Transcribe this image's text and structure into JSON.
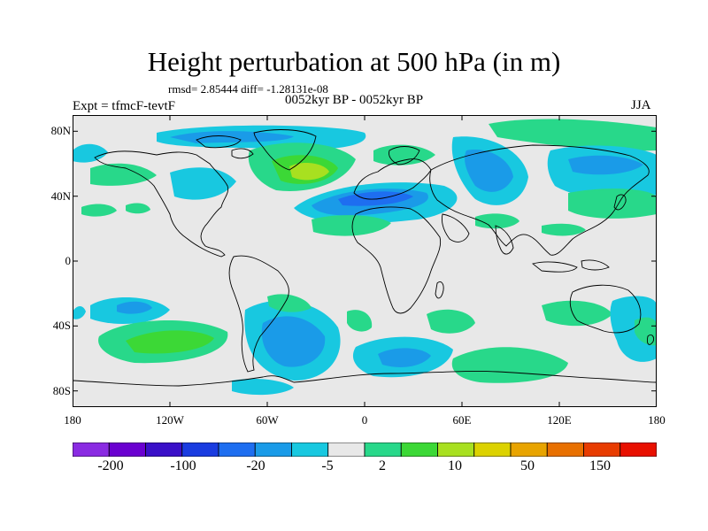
{
  "title": "Height perturbation at 500 hPa (in m)",
  "stats": "rmsd= 2.85444 diff= -1.28131e-08",
  "experiment": "Expt = tfmcF-tevtF",
  "period": "0052kyr BP - 0052kyr BP",
  "season": "JJA",
  "map": {
    "projection": "cylindrical equidistant",
    "lat_range": [
      -90,
      90
    ],
    "lon_range": [
      -180,
      180
    ],
    "lat_ticks": [
      "80N",
      "40N",
      "0",
      "40S",
      "80S"
    ],
    "lon_ticks": [
      "180",
      "120W",
      "60W",
      "0",
      "60E",
      "120E",
      "180"
    ],
    "background_color": "#e8e8e8",
    "coastline_color": "#000000"
  },
  "colorbar": {
    "colors": [
      "#8a2be2",
      "#6a00d0",
      "#3a10c8",
      "#1a3ce0",
      "#1e6ef0",
      "#1a9be8",
      "#18c8e0",
      "#e8e8e8",
      "#28d88a",
      "#3cd836",
      "#a8e020",
      "#dcd200",
      "#e8a400",
      "#e87000",
      "#e83c00",
      "#e81000"
    ],
    "labels": [
      "-200",
      "-100",
      "-20",
      "-5",
      "2",
      "10",
      "50",
      "150"
    ]
  }
}
